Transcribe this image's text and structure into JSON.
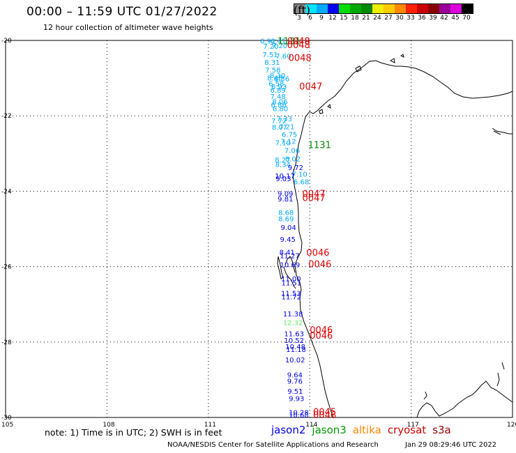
{
  "header": {
    "title": "00:00 – 11:59 UTC 01/27/2022",
    "subtitle": "12 hour collection of altimeter wave heights"
  },
  "color_scale": {
    "unit": "(ft)",
    "ticks": [
      "3",
      "6",
      "9",
      "12",
      "15",
      "18",
      "21",
      "24",
      "27",
      "30",
      "33",
      "36",
      "39",
      "42",
      "45",
      "70"
    ],
    "colors": [
      "#888888",
      "#00e5ff",
      "#00aaff",
      "#0000ee",
      "#00dd00",
      "#00aa00",
      "#008800",
      "#eeee00",
      "#ffcc00",
      "#ff8800",
      "#ff2200",
      "#cc0000",
      "#880000",
      "#990099",
      "#dd00dd",
      "#000000"
    ]
  },
  "axes": {
    "lat_labels": [
      "-20",
      "-22",
      "-24",
      "-26",
      "-28",
      "-30"
    ],
    "lon_labels": [
      "105",
      "108",
      "111",
      "114",
      "117",
      "120"
    ]
  },
  "observations": [
    {
      "v": "6.92",
      "lat": -20.01,
      "lon": 112.53,
      "c": "#00aaff"
    },
    {
      "v": "6.41",
      "lat": -20.01,
      "lon": 112.84,
      "c": "#00aaff"
    },
    {
      "v": "7.20",
      "lat": -20.15,
      "lon": 112.62,
      "c": "#00aaff"
    },
    {
      "v": "7.20",
      "lat": -20.13,
      "lon": 112.88,
      "c": "#00aaff"
    },
    {
      "v": "7.51",
      "lat": -20.37,
      "lon": 112.6,
      "c": "#00aaff"
    },
    {
      "v": "7.60",
      "lat": -20.41,
      "lon": 112.99,
      "c": "#00aaff"
    },
    {
      "v": "8.31",
      "lat": -20.57,
      "lon": 112.66,
      "c": "#00aaff"
    },
    {
      "v": "7.58",
      "lat": -20.78,
      "lon": 112.68,
      "c": "#00aaff"
    },
    {
      "v": "8.30",
      "lat": -20.92,
      "lon": 112.82,
      "c": "#00aaff"
    },
    {
      "v": "8.48",
      "lat": -20.99,
      "lon": 112.74,
      "c": "#00aaff"
    },
    {
      "v": "8.36",
      "lat": -21.01,
      "lon": 112.94,
      "c": "#00aaff"
    },
    {
      "v": "6.58",
      "lat": -21.14,
      "lon": 112.78,
      "c": "#00aaff"
    },
    {
      "v": "6.93",
      "lat": -21.22,
      "lon": 112.86,
      "c": "#00aaff"
    },
    {
      "v": "6.89",
      "lat": -21.31,
      "lon": 112.83,
      "c": "#00aaff"
    },
    {
      "v": "7.48",
      "lat": -21.48,
      "lon": 112.83,
      "c": "#00aaff"
    },
    {
      "v": "8.06",
      "lat": -21.62,
      "lon": 112.89,
      "c": "#00aaff"
    },
    {
      "v": "6.86",
      "lat": -21.7,
      "lon": 112.85,
      "c": "#00aaff"
    },
    {
      "v": "6.80",
      "lat": -21.8,
      "lon": 112.9,
      "c": "#00aaff"
    },
    {
      "v": "7.33",
      "lat": -22.07,
      "lon": 113.02,
      "c": "#00aaff"
    },
    {
      "v": "7.72",
      "lat": -22.13,
      "lon": 112.86,
      "c": "#00aaff"
    },
    {
      "v": "8.07",
      "lat": -22.29,
      "lon": 112.88,
      "c": "#00aaff"
    },
    {
      "v": "7.21",
      "lat": -22.28,
      "lon": 113.09,
      "c": "#00aaff"
    },
    {
      "v": "6.75",
      "lat": -22.49,
      "lon": 113.17,
      "c": "#00aaff"
    },
    {
      "v": "7.10",
      "lat": -22.71,
      "lon": 112.98,
      "c": "#00aaff"
    },
    {
      "v": "7.12",
      "lat": -22.67,
      "lon": 113.14,
      "c": "#00aaff"
    },
    {
      "v": "7.06",
      "lat": -22.91,
      "lon": 113.25,
      "c": "#00aaff"
    },
    {
      "v": "8.27",
      "lat": -23.16,
      "lon": 112.97,
      "c": "#00aaff"
    },
    {
      "v": "8.02",
      "lat": -23.13,
      "lon": 113.27,
      "c": "#00aaff"
    },
    {
      "v": "8.34",
      "lat": -23.28,
      "lon": 112.98,
      "c": "#00aaff"
    },
    {
      "v": "9.72",
      "lat": -23.36,
      "lon": 113.35,
      "c": "#0000ee"
    },
    {
      "v": "7.10",
      "lat": -23.54,
      "lon": 113.47,
      "c": "#00aaff"
    },
    {
      "v": "10.17",
      "lat": -23.59,
      "lon": 112.97,
      "c": "#0000ee"
    },
    {
      "v": "9.03",
      "lat": -23.66,
      "lon": 112.99,
      "c": "#0000ee"
    },
    {
      "v": "6.68",
      "lat": -23.74,
      "lon": 113.52,
      "c": "#00aaff"
    },
    {
      "v": "9.09",
      "lat": -24.06,
      "lon": 113.05,
      "c": "#0000ee"
    },
    {
      "v": "9.81",
      "lat": -24.2,
      "lon": 113.05,
      "c": "#0000ee"
    },
    {
      "v": "8.68",
      "lat": -24.56,
      "lon": 113.07,
      "c": "#00aaff"
    },
    {
      "v": "8.69",
      "lat": -24.72,
      "lon": 113.07,
      "c": "#00aaff"
    },
    {
      "v": "9.04",
      "lat": -24.95,
      "lon": 113.14,
      "c": "#0000ee"
    },
    {
      "v": "9.45",
      "lat": -25.27,
      "lon": 113.12,
      "c": "#0000ee"
    },
    {
      "v": "8.41",
      "lat": -25.61,
      "lon": 113.1,
      "c": "#0000ee"
    },
    {
      "v": "11.27",
      "lat": -25.7,
      "lon": 113.11,
      "c": "#0000ee"
    },
    {
      "v": "10.69",
      "lat": -25.94,
      "lon": 113.12,
      "c": "#0000ee"
    },
    {
      "v": "11.00",
      "lat": -26.31,
      "lon": 113.15,
      "c": "#0000ee"
    },
    {
      "v": "11.51",
      "lat": -26.42,
      "lon": 113.16,
      "c": "#0000ee"
    },
    {
      "v": "11.53",
      "lat": -26.7,
      "lon": 113.15,
      "c": "#0000ee"
    },
    {
      "v": "11.72",
      "lat": -26.79,
      "lon": 113.16,
      "c": "#0000ee"
    },
    {
      "v": "11.38",
      "lat": -27.25,
      "lon": 113.21,
      "c": "#0000ee"
    },
    {
      "v": "12.32",
      "lat": -27.48,
      "lon": 113.21,
      "c": "#66ee66"
    },
    {
      "v": "11.63",
      "lat": -27.77,
      "lon": 113.24,
      "c": "#0000ee"
    },
    {
      "v": "10.52",
      "lat": -27.95,
      "lon": 113.24,
      "c": "#0000ee"
    },
    {
      "v": "10.48",
      "lat": -28.11,
      "lon": 113.28,
      "c": "#0000ee"
    },
    {
      "v": "11.18",
      "lat": -28.19,
      "lon": 113.3,
      "c": "#0000ee"
    },
    {
      "v": "10.02",
      "lat": -28.47,
      "lon": 113.27,
      "c": "#0000ee"
    },
    {
      "v": "9.64",
      "lat": -28.86,
      "lon": 113.33,
      "c": "#0000ee"
    },
    {
      "v": "9.76",
      "lat": -29.03,
      "lon": 113.33,
      "c": "#0000ee"
    },
    {
      "v": "9.51",
      "lat": -29.3,
      "lon": 113.34,
      "c": "#0000ee"
    },
    {
      "v": "9.93",
      "lat": -29.49,
      "lon": 113.38,
      "c": "#0000ee"
    },
    {
      "v": "10.28",
      "lat": -29.86,
      "lon": 113.38,
      "c": "#0000ee"
    },
    {
      "v": "10.68",
      "lat": -29.93,
      "lon": 113.38,
      "c": "#0000ee"
    }
  ],
  "pass_times": [
    {
      "t": "1131",
      "lat": -20.01,
      "lon": 113.05,
      "c": "#008800"
    },
    {
      "t": "0048",
      "lat": -20.01,
      "lon": 113.33,
      "c": "#dd0000"
    },
    {
      "t": "0048",
      "lat": -20.11,
      "lon": 113.33,
      "c": "#dd0000"
    },
    {
      "t": "0048",
      "lat": -20.45,
      "lon": 113.37,
      "c": "#dd0000"
    },
    {
      "t": "0047",
      "lat": -21.21,
      "lon": 113.69,
      "c": "#dd0000"
    },
    {
      "t": "1131",
      "lat": -22.76,
      "lon": 113.95,
      "c": "#008800"
    },
    {
      "t": "0047",
      "lat": -24.06,
      "lon": 113.78,
      "c": "#dd0000"
    },
    {
      "t": "0047",
      "lat": -24.17,
      "lon": 113.78,
      "c": "#dd0000"
    },
    {
      "t": "0046",
      "lat": -25.62,
      "lon": 113.9,
      "c": "#dd0000"
    },
    {
      "t": "0046",
      "lat": -25.92,
      "lon": 113.96,
      "c": "#dd0000"
    },
    {
      "t": "0046",
      "lat": -27.67,
      "lon": 114.0,
      "c": "#dd0000"
    },
    {
      "t": "0046",
      "lat": -27.82,
      "lon": 114.0,
      "c": "#dd0000"
    },
    {
      "t": "0045",
      "lat": -29.84,
      "lon": 114.1,
      "c": "#dd0000"
    },
    {
      "t": "0046",
      "lat": -29.93,
      "lon": 114.1,
      "c": "#dd0000"
    }
  ],
  "note": "note: 1) Time is in UTC; 2) SWH is in feet",
  "satellites": [
    {
      "name": "jason2",
      "color": "#0000dd"
    },
    {
      "name": "jason3",
      "color": "#009900"
    },
    {
      "name": "altika",
      "color": "#ff8800"
    },
    {
      "name": "cryosat",
      "color": "#cc0000"
    },
    {
      "name": "s3a",
      "color": "#990000"
    }
  ],
  "footer": "NOAA/NESDIS Center for Satellite Applications and Research",
  "timestamp": "Jan 29 08:29:46 UTC 2022"
}
